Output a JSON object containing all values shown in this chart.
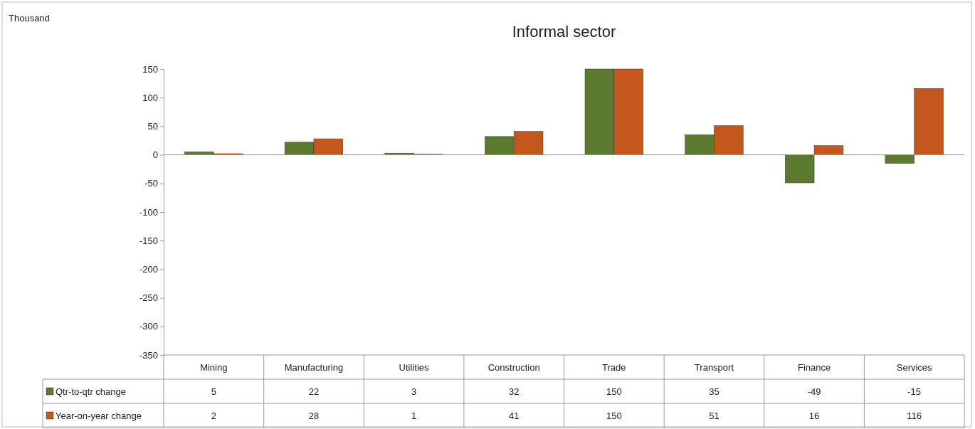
{
  "chart_data": {
    "type": "bar",
    "title": "Informal sector",
    "annotations": [
      "Thousand"
    ],
    "categories": [
      "Mining",
      "Manufacturing",
      "Utilities",
      "Construction",
      "Trade",
      "Transport",
      "Finance",
      "Services"
    ],
    "series": [
      {
        "name": "Qtr-to-qtr change",
        "color": "#5b7a30",
        "values": [
          5,
          22,
          3,
          32,
          150,
          35,
          -49,
          -15
        ]
      },
      {
        "name": "Year-on-year change",
        "color": "#c4581c",
        "values": [
          2,
          28,
          1,
          41,
          150,
          51,
          16,
          116
        ]
      }
    ],
    "ylim": [
      -350,
      150
    ],
    "yticks": [
      -350,
      -300,
      -250,
      -200,
      -150,
      -100,
      -50,
      0,
      50,
      100,
      150
    ],
    "data_labels": true,
    "legend": "bottom"
  }
}
